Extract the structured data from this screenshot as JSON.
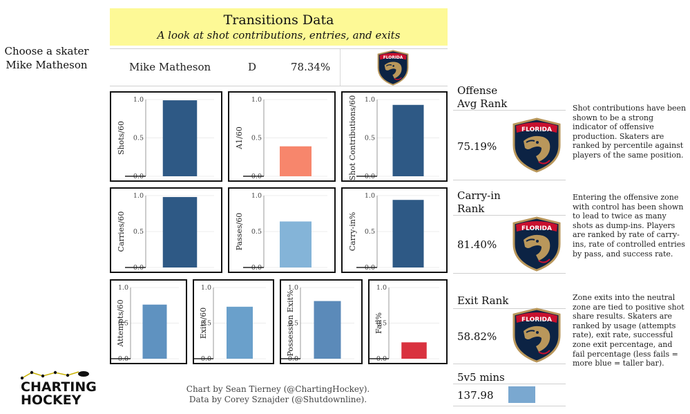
{
  "header": {
    "title": "Transitions Data",
    "subtitle": "A look at shot contributions, entries, and exits"
  },
  "selector": {
    "label": "Choose a skater",
    "value": "Mike Matheson"
  },
  "player": {
    "name": "Mike Matheson",
    "position": "D",
    "percent": "78.34%",
    "team_logo": "florida-panthers-logo"
  },
  "ranks": [
    {
      "label_line1": "Offense",
      "label_line2": "Avg Rank",
      "value": "75.19%",
      "description": "Shot contributions have been shown to be a strong indicator of offensive production. Skaters are ranked by percentile against players of the same position."
    },
    {
      "label_line1": "Carry-in",
      "label_line2": "Rank",
      "value": "81.40%",
      "description": "Entering the offensive zone with control has been shown to lead to twice as many shots as dump-ins. Players are ranked by rate of carry-ins, rate of controlled entries by pass, and success rate."
    },
    {
      "label_line1": "Exit Rank",
      "label_line2": "",
      "value": "58.82%",
      "description": "Zone exits into the neutral zone are tied to positive shot share results. Skaters are ranked by usage (attempts rate), exit rate, successful zone exit percentage, and fail percentage (less fails = more blue = taller bar)."
    }
  ],
  "minutes": {
    "label": "5v5 mins",
    "value": "137.98",
    "bar_fraction": 0.35,
    "bar_color": "#7aa8d0"
  },
  "credits": {
    "line1": "Chart by Sean Tierney (@ChartingHockey).",
    "line2": "Data by Corey Sznajder (@Shutdownline)."
  },
  "brand": {
    "line1": "CHARTING",
    "line2": "HOCKEY"
  },
  "chart_data": [
    {
      "type": "bar",
      "ylabel": "Shots/60",
      "ylim": [
        0,
        1
      ],
      "ticks": [
        "0.0",
        "0.5",
        "1.0"
      ],
      "values": [
        0.99
      ],
      "color": "#2e5985"
    },
    {
      "type": "bar",
      "ylabel": "A1/60",
      "ylim": [
        0,
        1
      ],
      "ticks": [
        "0.0",
        "0.5",
        "1.0"
      ],
      "values": [
        0.39
      ],
      "color": "#f7866c"
    },
    {
      "type": "bar",
      "ylabel": "Shot Contributions/60",
      "ylim": [
        0,
        1
      ],
      "ticks": [
        "0.0",
        "0.5",
        "1.0"
      ],
      "values": [
        0.93
      ],
      "color": "#2e5985"
    },
    {
      "type": "bar",
      "ylabel": "Carries/60",
      "ylim": [
        0,
        1
      ],
      "ticks": [
        "0.0",
        "0.5",
        "1.0"
      ],
      "values": [
        0.98
      ],
      "color": "#2e5985"
    },
    {
      "type": "bar",
      "ylabel": "Passes/60",
      "ylim": [
        0,
        1
      ],
      "ticks": [
        "0.0",
        "0.5",
        "1.0"
      ],
      "values": [
        0.64
      ],
      "color": "#84b4d8"
    },
    {
      "type": "bar",
      "ylabel": "Carry-in%",
      "ylim": [
        0,
        1
      ],
      "ticks": [
        "0.0",
        "0.5",
        "1.0"
      ],
      "values": [
        0.94
      ],
      "color": "#2e5985"
    },
    {
      "type": "bar",
      "ylabel": "Attempts/60",
      "ylim": [
        0,
        1
      ],
      "ticks": [
        "0.0",
        "0.5",
        "1.0"
      ],
      "values": [
        0.76
      ],
      "color": "#5f92c0"
    },
    {
      "type": "bar",
      "ylabel": "Exits/60",
      "ylim": [
        0,
        1
      ],
      "ticks": [
        "0.0",
        "0.5",
        "1.0"
      ],
      "values": [
        0.73
      ],
      "color": "#6aa0cb"
    },
    {
      "type": "bar",
      "ylabel": "Possession Exit%",
      "ylim": [
        0,
        1
      ],
      "ticks": [
        "0.0",
        "0.5",
        "1.0"
      ],
      "values": [
        0.81
      ],
      "color": "#5b8ab9"
    },
    {
      "type": "bar",
      "ylabel": "Fail%",
      "ylim": [
        0,
        1
      ],
      "ticks": [
        "0.0",
        "0.5",
        "1.0"
      ],
      "values": [
        0.23
      ],
      "color": "#d9323f"
    }
  ]
}
